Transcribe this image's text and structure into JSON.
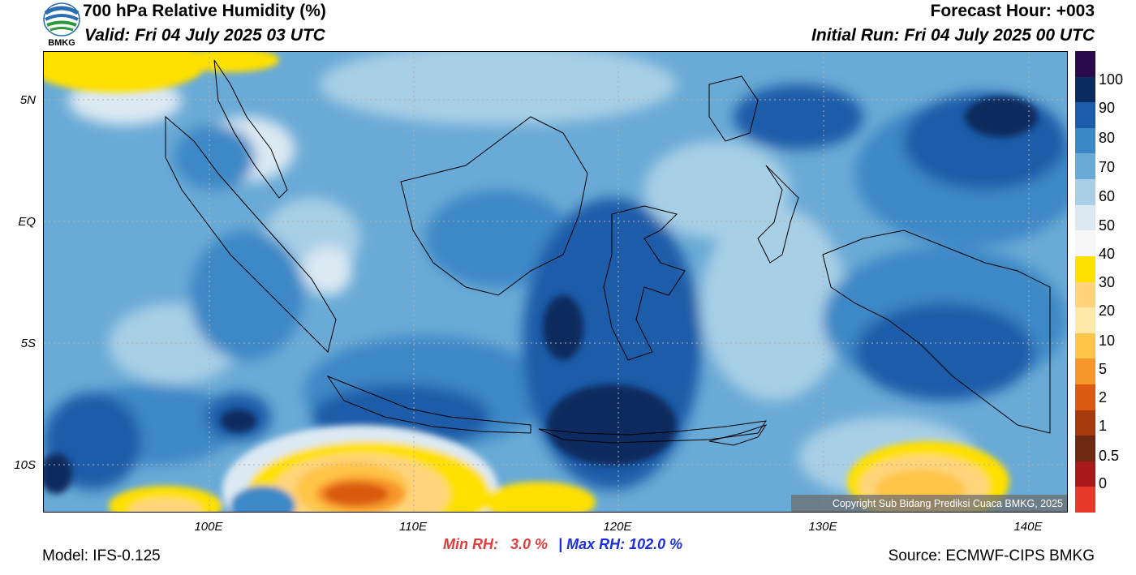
{
  "header": {
    "title": "700 hPa Relative Humidity (%)",
    "valid": "Valid: Fri 04 July 2025 03 UTC",
    "forecast_hour": "Forecast Hour: +003",
    "initial_run": "Initial Run: Fri 04 July 2025 00 UTC",
    "logo_text": "BMKG"
  },
  "map": {
    "lat_labels": [
      "5N",
      "EQ",
      "5S",
      "10S"
    ],
    "lon_labels": [
      "100E",
      "110E",
      "120E",
      "130E",
      "140E"
    ],
    "copyright": "Copyright Sub Bidang Prediksi Cuaca BMKG, 2025"
  },
  "stats": {
    "min_label": "Min RH:",
    "min_value": "3.0 %",
    "separator": "|",
    "max_label": "Max RH:",
    "max_value": "102.0 %"
  },
  "footer": {
    "model": "Model: IFS-0.125",
    "source": "Source: ECMWF-CIPS BMKG"
  },
  "colorbar": {
    "labels": [
      "100",
      "90",
      "80",
      "70",
      "60",
      "50",
      "40",
      "30",
      "20",
      "10",
      "5",
      "2",
      "1",
      "0.5",
      "0"
    ],
    "colors": [
      "#2a0a4a",
      "#0b2a5e",
      "#1d5ca8",
      "#3c88c6",
      "#6aaad6",
      "#a8cfe6",
      "#dce9f3",
      "#f7f7f7",
      "#ffe000",
      "#ffd47a",
      "#ffe9a8",
      "#ffc54a",
      "#f7962a",
      "#d95a10",
      "#a63a0c",
      "#6e2a10",
      "#a81a1a",
      "#e83a2a"
    ]
  }
}
